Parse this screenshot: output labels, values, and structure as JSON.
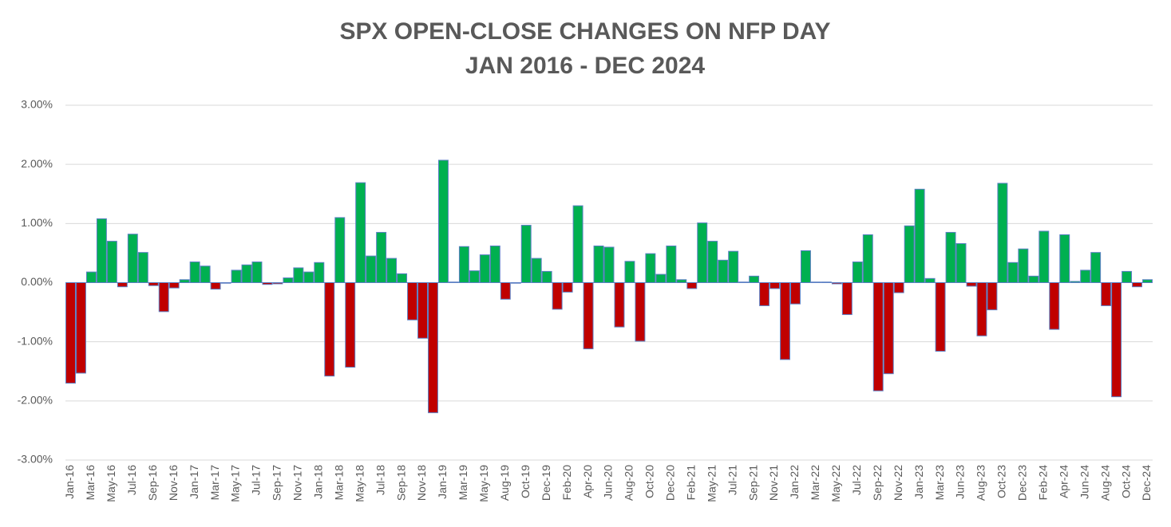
{
  "chart_data": {
    "type": "bar",
    "title": "SPX OPEN-CLOSE CHANGES ON NFP DAY",
    "subtitle": "JAN 2016 - DEC 2024",
    "categories": [
      "Jan-16",
      null,
      "Mar-16",
      null,
      "May-16",
      null,
      "Jul-16",
      null,
      "Sep-16",
      null,
      "Nov-16",
      null,
      "Jan-17",
      null,
      "Mar-17",
      null,
      "May-17",
      null,
      "Jul-17",
      null,
      "Sep-17",
      null,
      "Nov-17",
      null,
      "Jan-18",
      null,
      "Mar-18",
      null,
      "May-18",
      null,
      "Jul-18",
      null,
      "Sep-18",
      null,
      "Nov-18",
      null,
      "Jan-19",
      null,
      "Mar-19",
      null,
      "May-19",
      null,
      "Aug-19",
      null,
      "Oct-19",
      null,
      "Dec-19",
      null,
      "Feb-20",
      null,
      "Apr-20",
      null,
      "Jun-20",
      null,
      "Aug-20",
      null,
      "Oct-20",
      null,
      "Dec-20",
      null,
      "Feb-21",
      null,
      "May-21",
      null,
      "Jul-21",
      null,
      "Sep-21",
      null,
      "Nov-21",
      null,
      "Jan-22",
      null,
      "Mar-22",
      null,
      "May-22",
      null,
      "Jul-22",
      null,
      "Sep-22",
      null,
      "Nov-22",
      null,
      "Jan-23",
      null,
      "Mar-23",
      null,
      "Jun-23",
      null,
      "Aug-23",
      null,
      "Oct-23",
      null,
      "Dec-23",
      null,
      "Feb-24",
      null,
      "Apr-24",
      null,
      "Jun-24",
      null,
      "Aug-24",
      null,
      "Oct-24",
      null,
      "Dec-24"
    ],
    "values": [
      -1.7,
      -1.53,
      0.18,
      1.08,
      0.7,
      -0.07,
      0.82,
      0.51,
      -0.05,
      -0.49,
      -0.09,
      0.05,
      0.35,
      0.28,
      -0.11,
      -0.01,
      0.21,
      0.3,
      0.35,
      -0.03,
      -0.02,
      0.08,
      0.25,
      0.18,
      0.34,
      -1.58,
      1.1,
      -1.43,
      1.69,
      0.45,
      0.85,
      0.41,
      0.15,
      -0.63,
      -0.94,
      -2.2,
      2.07,
      0.01,
      0.61,
      0.2,
      0.47,
      0.62,
      -0.28,
      -0.01,
      0.97,
      0.41,
      0.19,
      -0.45,
      -0.16,
      1.3,
      -1.12,
      0.62,
      0.6,
      -0.75,
      0.36,
      -0.99,
      0.49,
      0.14,
      0.62,
      0.05,
      -0.1,
      1.01,
      0.7,
      0.38,
      0.53,
      0.01,
      0.11,
      -0.39,
      -0.1,
      -1.3,
      -0.36,
      0.54,
      0.01,
      0.01,
      -0.02,
      -0.54,
      0.35,
      0.81,
      -1.83,
      -1.54,
      -0.17,
      0.96,
      1.58,
      0.07,
      -1.16,
      0.85,
      0.66,
      -0.06,
      -0.9,
      -0.46,
      1.68,
      0.34,
      0.57,
      0.11,
      0.87,
      -0.79,
      0.81,
      0.02,
      0.21,
      0.51,
      -0.39,
      -1.93,
      0.19,
      -0.07,
      0.05
    ],
    "positive_color": "#00b050",
    "negative_color": "#c00000",
    "ylim": [
      -3,
      3
    ],
    "yticks": [
      {
        "value": -3,
        "label": "-3.00%"
      },
      {
        "value": -2,
        "label": "-2.00%"
      },
      {
        "value": -1,
        "label": "-1.00%"
      },
      {
        "value": 0,
        "label": "0.00%"
      },
      {
        "value": 1,
        "label": "1.00%"
      },
      {
        "value": 2,
        "label": "2.00%"
      },
      {
        "value": 3,
        "label": "3.00%"
      }
    ],
    "grid": true
  }
}
